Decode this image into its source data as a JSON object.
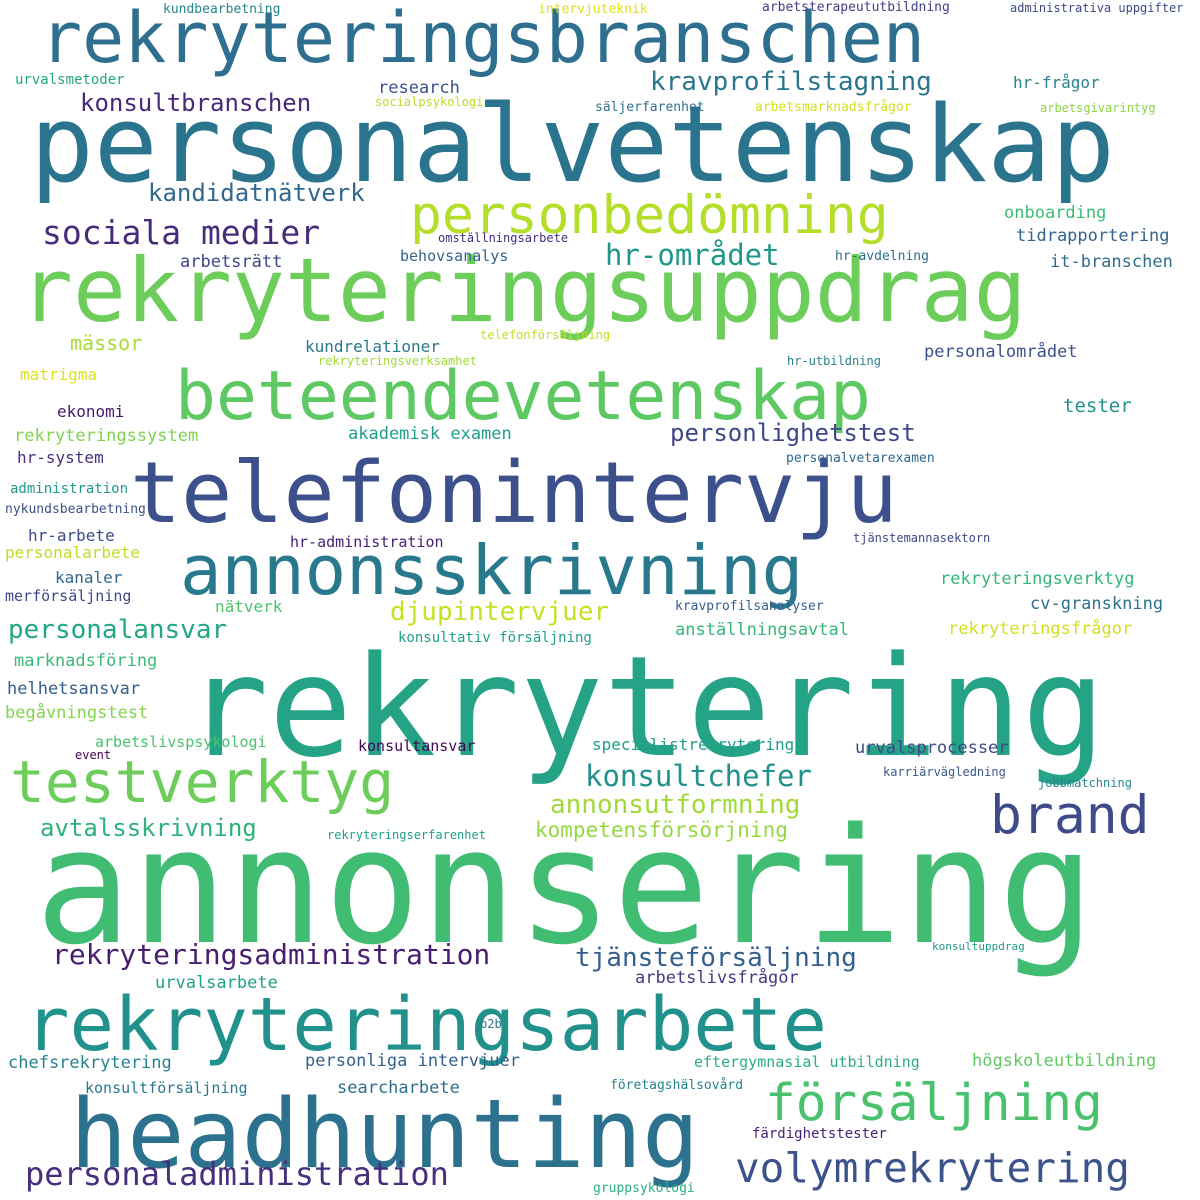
{
  "words": [
    {
      "text": "annonsering",
      "color": "#40bd72"
    },
    {
      "text": "rekrytering",
      "color": "#25a386"
    },
    {
      "text": "personalvetenskap",
      "color": "#2b748e"
    },
    {
      "text": "rekryteringsuppdrag",
      "color": "#6ccd5a"
    },
    {
      "text": "telefonintervju",
      "color": "#3c508b"
    },
    {
      "text": "rekryteringsbranschen",
      "color": "#2e6e8e"
    },
    {
      "text": "beteendevetenskap",
      "color": "#5ec962"
    },
    {
      "text": "rekryteringsarbete",
      "color": "#21918c"
    },
    {
      "text": "headhunting",
      "color": "#2c718e"
    },
    {
      "text": "annonsskrivning",
      "color": "#29798e"
    },
    {
      "text": "testverktyg",
      "color": "#6ccd5a"
    },
    {
      "text": "personbedömning",
      "color": "#b5de2b"
    },
    {
      "text": "brand",
      "color": "#3e4a89"
    },
    {
      "text": "försäljning",
      "color": "#4ac16d"
    },
    {
      "text": "volymrekrytering",
      "color": "#3b528b"
    },
    {
      "text": "personaladministration",
      "color": "#46307e"
    },
    {
      "text": "rekryteringsadministration",
      "color": "#481f70"
    },
    {
      "text": "tjänsteförsäljning",
      "color": "#355f8d"
    },
    {
      "text": "sociala medier",
      "color": "#472c7a"
    },
    {
      "text": "kravprofilstagning",
      "color": "#2a768e"
    },
    {
      "text": "hr-området",
      "color": "#1f988b"
    },
    {
      "text": "konsultchefer",
      "color": "#21918c"
    },
    {
      "text": "annonsutformning",
      "color": "#a0da39"
    },
    {
      "text": "personalansvar",
      "color": "#22a785"
    },
    {
      "text": "djupintervjuer",
      "color": "#c8e020"
    },
    {
      "text": "avtalsskrivning",
      "color": "#2db27d"
    },
    {
      "text": "kandidatnätverk",
      "color": "#31688e"
    },
    {
      "text": "konsultbranschen",
      "color": "#482878"
    },
    {
      "text": "personlighetstest",
      "color": "#404688"
    },
    {
      "text": "kompetensförsörjning",
      "color": "#95d840"
    },
    {
      "text": "mässor",
      "color": "#a8db34"
    },
    {
      "text": "matrigma",
      "color": "#dae319"
    },
    {
      "text": "ekonomi",
      "color": "#481a6c"
    },
    {
      "text": "rekryteringssystem",
      "color": "#7fd34e"
    },
    {
      "text": "hr-system",
      "color": "#472f7d"
    },
    {
      "text": "administration",
      "color": "#1f9a8a"
    },
    {
      "text": "nykundsbearbetning",
      "color": "#3b528b"
    },
    {
      "text": "hr-arbete",
      "color": "#3e4989"
    },
    {
      "text": "personalarbete",
      "color": "#bddf26"
    },
    {
      "text": "kanaler",
      "color": "#31678e"
    },
    {
      "text": "merförsäljning",
      "color": "#3f4788"
    },
    {
      "text": "nätverk",
      "color": "#4ec36b"
    },
    {
      "text": "marknadsföring",
      "color": "#3aba76"
    },
    {
      "text": "helhetsansvar",
      "color": "#355f8d"
    },
    {
      "text": "begåvningstest",
      "color": "#84d44b"
    },
    {
      "text": "arbetslivspsykologi",
      "color": "#4ac16d"
    },
    {
      "text": "event",
      "color": "#440154"
    },
    {
      "text": "konsultansvar",
      "color": "#450559"
    },
    {
      "text": "research",
      "color": "#3b518b"
    },
    {
      "text": "socialpsykologi",
      "color": "#b8de29"
    },
    {
      "text": "kundbearbetning",
      "color": "#25848e"
    },
    {
      "text": "intervjuteknik",
      "color": "#dde318"
    },
    {
      "text": "arbetsterapeututbildning",
      "color": "#424086"
    },
    {
      "text": "administrativa uppgifter",
      "color": "#3f4788"
    },
    {
      "text": "urvalsmetoder",
      "color": "#22a884"
    },
    {
      "text": "säljerfarenhet",
      "color": "#2d708e"
    },
    {
      "text": "arbetsmarknadsfrågor",
      "color": "#d2e21b"
    },
    {
      "text": "arbetsgivarintyg",
      "color": "#8bd646"
    },
    {
      "text": "hr-frågor",
      "color": "#26828e"
    },
    {
      "text": "onboarding",
      "color": "#3dbc74"
    },
    {
      "text": "tidrapportering",
      "color": "#33638d"
    },
    {
      "text": "it-branschen",
      "color": "#2d708e"
    },
    {
      "text": "arbetsrätt",
      "color": "#404588"
    },
    {
      "text": "behovsanalys",
      "color": "#33638d"
    },
    {
      "text": "omställningsarbete",
      "color": "#472d7b"
    },
    {
      "text": "hr-avdelning",
      "color": "#2e6e8e"
    },
    {
      "text": "telefonförsäljning",
      "color": "#c2df23"
    },
    {
      "text": "rekryteringsverksamhet",
      "color": "#a2da37"
    },
    {
      "text": "hr-utbildning",
      "color": "#26828e"
    },
    {
      "text": "kundrelationer",
      "color": "#2a788e"
    },
    {
      "text": "personalområdet",
      "color": "#3c508b"
    },
    {
      "text": "tester",
      "color": "#21918c"
    },
    {
      "text": "akademisk examen",
      "color": "#1f9e89"
    },
    {
      "text": "personalvetarexamen",
      "color": "#31688e"
    },
    {
      "text": "hr-administration",
      "color": "#482173"
    },
    {
      "text": "tjänstemannasektorn",
      "color": "#3e4989"
    },
    {
      "text": "rekryteringsverktyg",
      "color": "#34b679"
    },
    {
      "text": "kravprofilsanalyser",
      "color": "#365c8d"
    },
    {
      "text": "cv-granskning",
      "color": "#2c718e"
    },
    {
      "text": "konsultativ försäljning",
      "color": "#1f9e89"
    },
    {
      "text": "anställningsavtal",
      "color": "#34b679"
    },
    {
      "text": "rekryteringsfrågor",
      "color": "#d0e11c"
    },
    {
      "text": "specialistrekrytering",
      "color": "#1f9e89"
    },
    {
      "text": "urvalsprocesser",
      "color": "#3e4989"
    },
    {
      "text": "karriärvägledning",
      "color": "#38598c"
    },
    {
      "text": "jobbmatchning",
      "color": "#24878e"
    },
    {
      "text": "rekryteringserfarenhet",
      "color": "#1f9e89"
    },
    {
      "text": "konsultuppdrag",
      "color": "#1f9a8a"
    },
    {
      "text": "urvalsarbete",
      "color": "#1fa088"
    },
    {
      "text": "arbetslivsfrågor",
      "color": "#443a83"
    },
    {
      "text": "b2b",
      "color": "#2a788e"
    },
    {
      "text": "chefsrekrytering",
      "color": "#26828e"
    },
    {
      "text": "personliga intervjuer",
      "color": "#355f8d"
    },
    {
      "text": "eftergymnasial utbildning",
      "color": "#29af7f"
    },
    {
      "text": "högskoleutbildning",
      "color": "#5ec962"
    },
    {
      "text": "searcharbete",
      "color": "#2d708e"
    },
    {
      "text": "konsultförsäljning",
      "color": "#2a788e"
    },
    {
      "text": "företagshälsovård",
      "color": "#25848e"
    },
    {
      "text": "färdighetstester",
      "color": "#481f70"
    },
    {
      "text": "gruppsykologi",
      "color": "#2ab07f"
    }
  ]
}
